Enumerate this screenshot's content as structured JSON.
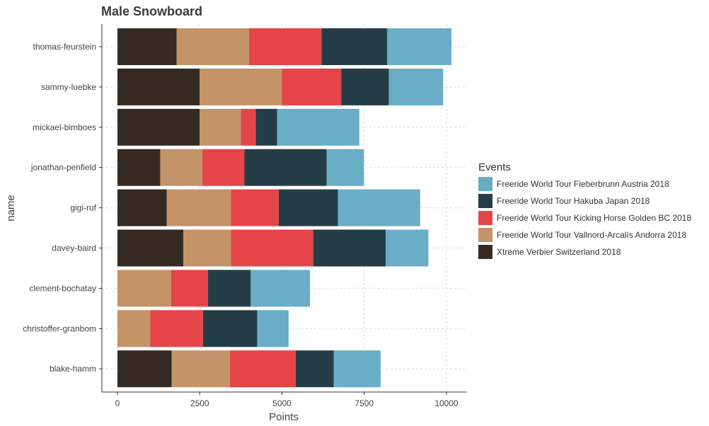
{
  "chart_data": {
    "type": "bar",
    "orientation": "horizontal",
    "stacked": true,
    "title": "Male Snowboard",
    "xlabel": "Points",
    "ylabel": "name",
    "xlim": [
      0,
      10500
    ],
    "x_ticks": [
      0,
      2500,
      5000,
      7500,
      10000
    ],
    "grid": true,
    "legend_title": "Events",
    "legend_position": "right",
    "categories": [
      "thomas-feurstein",
      "sammy-luebke",
      "mickael-bimboes",
      "jonathan-penfield",
      "gigi-ruf",
      "davey-baird",
      "clement-bochatay",
      "christoffer-granbom",
      "blake-hamm"
    ],
    "series": [
      {
        "name": "Xtreme Verbier Switzerland 2018",
        "color": "#352a22",
        "values": [
          1800,
          2500,
          2500,
          1300,
          1500,
          2000,
          0,
          0,
          1650
        ]
      },
      {
        "name": "Freeride World Tour Vallnord-Arcalís Andorra 2018",
        "color": "#c59368",
        "values": [
          2200,
          2500,
          1250,
          1280,
          1950,
          1450,
          1630,
          1000,
          1770
        ]
      },
      {
        "name": "Freeride World Tour Kicking Horse Golden BC 2018",
        "color": "#e54548",
        "values": [
          2200,
          1800,
          450,
          1280,
          1450,
          2500,
          1120,
          1600,
          2000
        ]
      },
      {
        "name": "Freeride World Tour Hakuba Japan 2018",
        "color": "#253d47",
        "values": [
          2000,
          1450,
          650,
          2500,
          1800,
          2200,
          1300,
          1650,
          1150
        ]
      },
      {
        "name": "Freeride World Tour Fieberbrunn Austria 2018",
        "color": "#69adc6",
        "values": [
          1950,
          1650,
          2500,
          1130,
          2500,
          1300,
          1800,
          950,
          1430
        ]
      }
    ],
    "legend_order": [
      "Freeride World Tour Fieberbrunn Austria 2018",
      "Freeride World Tour Hakuba Japan 2018",
      "Freeride World Tour Kicking Horse Golden BC 2018",
      "Freeride World Tour Vallnord-Arcalís Andorra 2018",
      "Xtreme Verbier Switzerland 2018"
    ]
  }
}
